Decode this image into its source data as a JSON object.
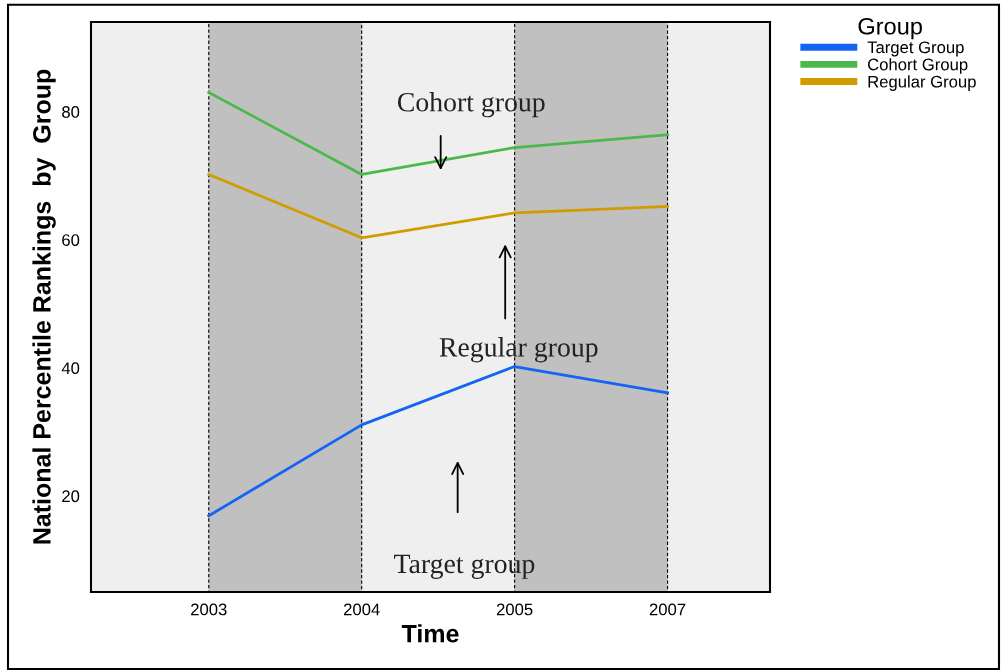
{
  "chart_data": {
    "type": "line",
    "xlabel": "Time",
    "ylabel": "National Percentile Rankings  by  Group",
    "legend_title": "Group",
    "legend": "top right",
    "categories": [
      "2003",
      "2004",
      "2005",
      "2007"
    ],
    "series": [
      {
        "name": "Target Group",
        "color": "#1464f4",
        "values": [
          16.9,
          31.1,
          40.2,
          36.1
        ]
      },
      {
        "name": "Cohort Group",
        "color": "#4cb84c",
        "values": [
          83.0,
          70.2,
          74.4,
          76.4
        ]
      },
      {
        "name": "Regular Group",
        "color": "#d09c00",
        "values": [
          70.2,
          60.3,
          64.2,
          65.2
        ]
      }
    ],
    "ylim": [
      5,
      94
    ],
    "yticks": [
      20,
      40,
      60,
      80
    ],
    "grid": false,
    "bands": [
      {
        "axis": "x",
        "from": "2003",
        "to": "2004",
        "color": "#c0c0c0"
      },
      {
        "axis": "x",
        "from": "2005",
        "to": "2007",
        "color": "#c0c0c0"
      }
    ],
    "annotations": [
      "Cohort group",
      "Regular group",
      "Target group"
    ]
  }
}
